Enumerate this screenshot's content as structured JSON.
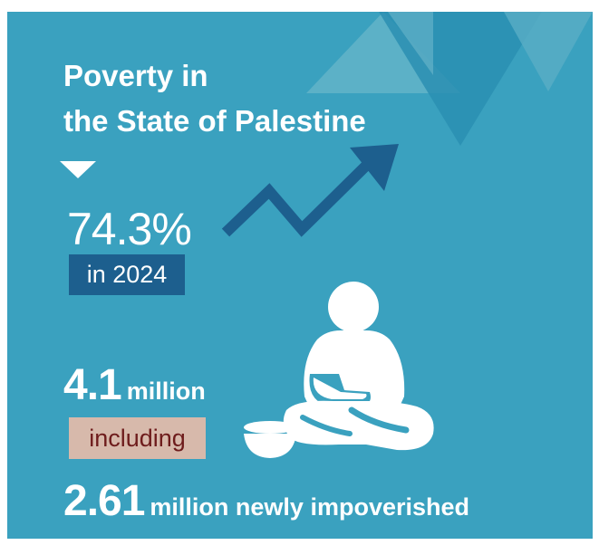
{
  "title": {
    "line1": "Poverty in",
    "line2": "the State of Palestine"
  },
  "poverty_rate": {
    "value": "74.3%",
    "year_label": "in 2024"
  },
  "population": {
    "value": "4.1",
    "unit": "million",
    "connector": "including"
  },
  "newly_impoverished": {
    "value": "2.61",
    "unit": "million newly impoverished"
  },
  "colors": {
    "background": "#3aa1bf",
    "accent_dark_blue": "#1d5f8e",
    "including_box": "#d7b9ab",
    "including_text": "#6e1c1c",
    "text": "#ffffff"
  },
  "icons": {
    "pointer": "down-triangle-icon",
    "trend": "upward-trend-arrow-icon",
    "figure": "seated-person-icon",
    "bowl": "begging-bowl-icon"
  }
}
